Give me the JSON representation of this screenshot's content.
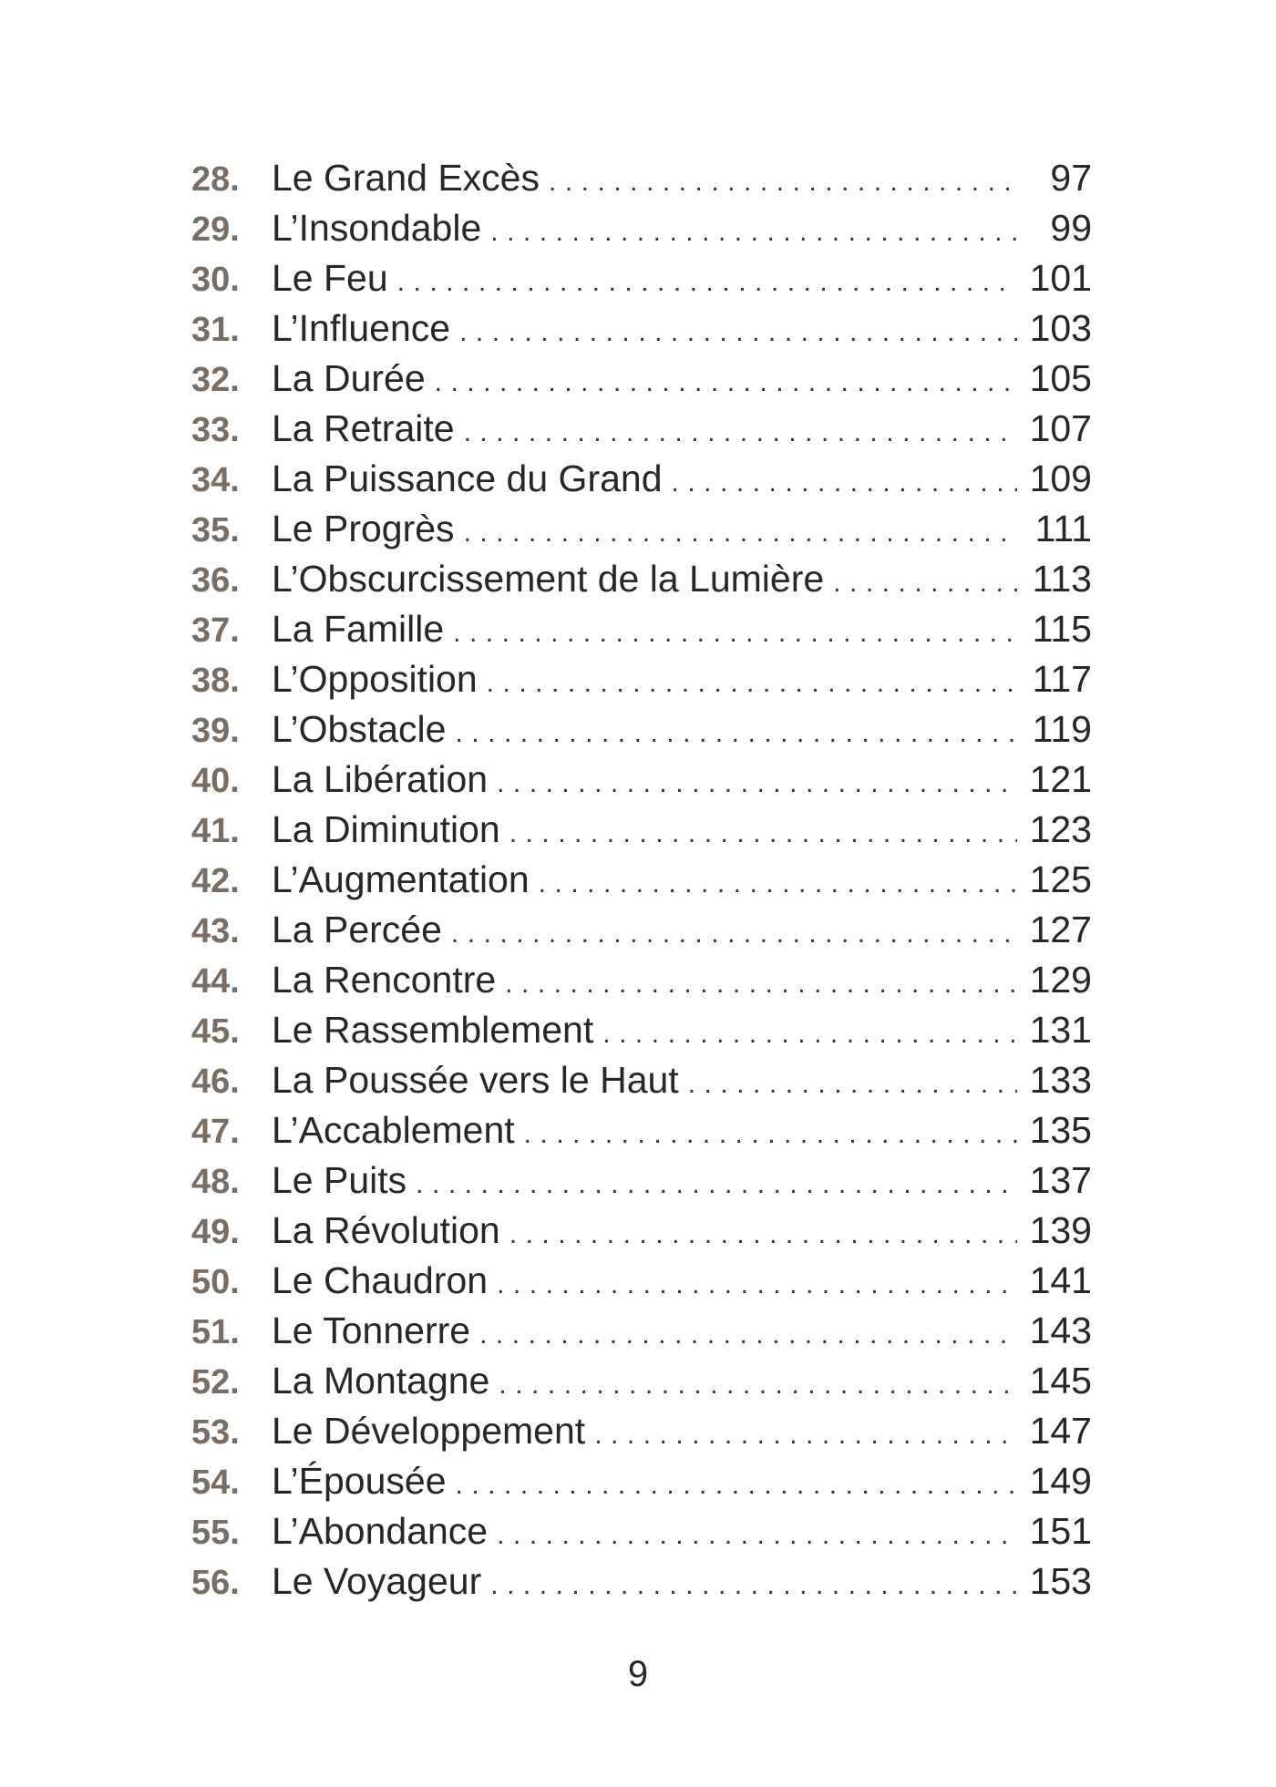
{
  "toc": {
    "entries": [
      {
        "number": "28.",
        "title": "Le Grand Excès",
        "page": "97"
      },
      {
        "number": "29.",
        "title": "L’Insondable",
        "page": "99"
      },
      {
        "number": "30.",
        "title": "Le Feu",
        "page": "101"
      },
      {
        "number": "31.",
        "title": "L’Influence",
        "page": "103"
      },
      {
        "number": "32.",
        "title": "La Durée",
        "page": "105"
      },
      {
        "number": "33.",
        "title": "La Retraite",
        "page": "107"
      },
      {
        "number": "34.",
        "title": "La Puissance du Grand",
        "page": "109"
      },
      {
        "number": "35.",
        "title": "Le Progrès",
        "page": "111"
      },
      {
        "number": "36.",
        "title": "L’Obscurcissement de la Lumière",
        "page": "113"
      },
      {
        "number": "37.",
        "title": "La Famille",
        "page": "115"
      },
      {
        "number": "38.",
        "title": "L’Opposition",
        "page": "117"
      },
      {
        "number": "39.",
        "title": "L’Obstacle",
        "page": "119"
      },
      {
        "number": "40.",
        "title": "La Libération",
        "page": "121"
      },
      {
        "number": "41.",
        "title": "La Diminution",
        "page": "123"
      },
      {
        "number": "42.",
        "title": "L’Augmentation",
        "page": "125"
      },
      {
        "number": "43.",
        "title": "La Percée",
        "page": "127"
      },
      {
        "number": "44.",
        "title": "La Rencontre",
        "page": "129"
      },
      {
        "number": "45.",
        "title": "Le Rassemblement",
        "page": "131"
      },
      {
        "number": "46.",
        "title": "La Poussée vers le Haut",
        "page": "133"
      },
      {
        "number": "47.",
        "title": "L’Accablement",
        "page": "135"
      },
      {
        "number": "48.",
        "title": "Le Puits",
        "page": "137"
      },
      {
        "number": "49.",
        "title": "La Révolution",
        "page": "139"
      },
      {
        "number": "50.",
        "title": "Le Chaudron",
        "page": "141"
      },
      {
        "number": "51.",
        "title": "Le Tonnerre",
        "page": "143"
      },
      {
        "number": "52.",
        "title": "La Montagne",
        "page": "145"
      },
      {
        "number": "53.",
        "title": "Le Développement",
        "page": "147"
      },
      {
        "number": "54.",
        "title": "L’Épousée",
        "page": "149"
      },
      {
        "number": "55.",
        "title": "L’Abondance",
        "page": "151"
      },
      {
        "number": "56.",
        "title": "Le Voyageur",
        "page": "153"
      }
    ]
  },
  "folio": "9",
  "colors": {
    "number": "#7a6d64",
    "text": "#2a2626"
  }
}
